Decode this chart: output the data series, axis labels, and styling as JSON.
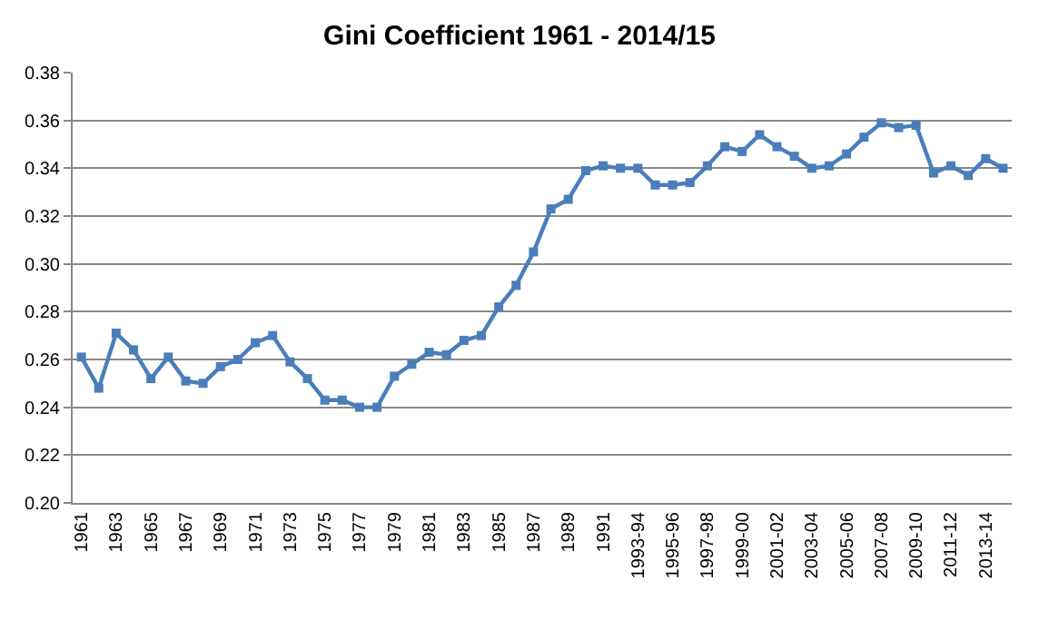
{
  "chart_data": {
    "type": "line",
    "title": "Gini Coefficient 1961 - 2014/15",
    "categories": [
      "1961",
      null,
      "1963",
      null,
      "1965",
      null,
      "1967",
      null,
      "1969",
      null,
      "1971",
      null,
      "1973",
      null,
      "1975",
      null,
      "1977",
      null,
      "1979",
      null,
      "1981",
      null,
      "1983",
      null,
      "1985",
      null,
      "1987",
      null,
      "1989",
      null,
      "1991",
      null,
      "1993-94",
      null,
      "1995-96",
      null,
      "1997-98",
      null,
      "1999-00",
      null,
      "2001-02",
      null,
      "2003-04",
      null,
      "2005-06",
      null,
      "2007-08",
      null,
      "2009-10",
      null,
      "2011-12",
      null,
      "2013-14",
      null
    ],
    "series": [
      {
        "color": "#4a7ebb",
        "values": [
          0.261,
          0.248,
          0.271,
          0.264,
          0.252,
          0.261,
          0.251,
          0.25,
          0.257,
          0.26,
          0.267,
          0.27,
          0.259,
          0.252,
          0.243,
          0.243,
          0.24,
          0.24,
          0.253,
          0.258,
          0.263,
          0.262,
          0.268,
          0.27,
          0.282,
          0.291,
          0.305,
          0.323,
          0.327,
          0.339,
          0.341,
          0.34,
          0.34,
          0.333,
          0.333,
          0.334,
          0.341,
          0.349,
          0.347,
          0.354,
          0.349,
          0.345,
          0.34,
          0.341,
          0.346,
          0.353,
          0.359,
          0.357,
          0.358,
          0.338,
          0.341,
          0.337,
          0.344,
          0.34
        ]
      }
    ],
    "ylim": [
      0.2,
      0.38
    ],
    "yticks": [
      {
        "value": 0.2,
        "label": "0.20"
      },
      0.22,
      0.24,
      0.26,
      0.28,
      {
        "value": 0.3,
        "label": "0.30"
      },
      0.32,
      0.34,
      0.36,
      0.38
    ],
    "grid": "y",
    "legend": false,
    "marker": "square",
    "line_style": "solid"
  }
}
